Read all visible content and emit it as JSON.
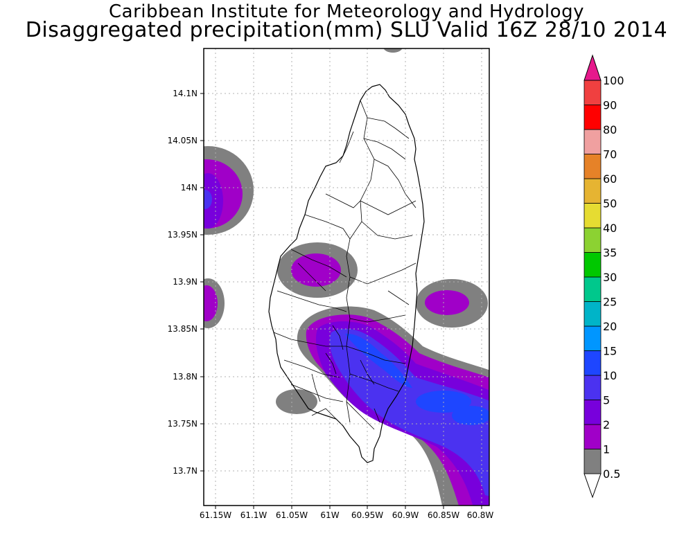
{
  "title_line1": "Caribbean Institute for Meteorology and Hydrology",
  "title_line2": "Disaggregated precipitation(mm) SLU Valid 16Z 28/10 2014",
  "axes": {
    "lon_labels": [
      "61.15W",
      "61.1W",
      "61.05W",
      "61W",
      "60.95W",
      "60.9W",
      "60.85W",
      "60.8W"
    ],
    "lat_labels": [
      "14.1N",
      "14.05N",
      "14N",
      "13.95N",
      "13.9N",
      "13.85N",
      "13.8N",
      "13.75N",
      "13.7N"
    ],
    "lon_range": [
      -61.17,
      -60.795
    ],
    "lat_range": [
      13.665,
      14.145
    ],
    "grid": "dotted"
  },
  "legend": {
    "labels": [
      "0.5",
      "1",
      "2",
      "5",
      "10",
      "15",
      "20",
      "25",
      "30",
      "35",
      "40",
      "50",
      "60",
      "70",
      "80",
      "90",
      "100"
    ],
    "colors": [
      "#ffffff",
      "#808080",
      "#a000c8",
      "#7800dc",
      "#4b32f0",
      "#1e46ff",
      "#0096ff",
      "#00b4c8",
      "#00c88c",
      "#00c800",
      "#8cd232",
      "#e6dc32",
      "#e6b432",
      "#e68228",
      "#f0a0a0",
      "#ff0000",
      "#f04040",
      "#e6198c"
    ]
  }
}
